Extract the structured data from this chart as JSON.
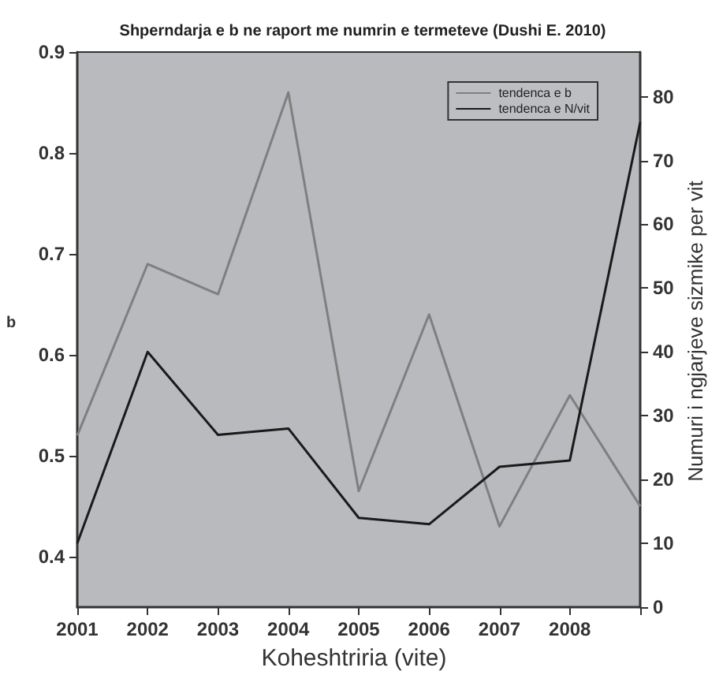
{
  "chart_data": {
    "type": "line",
    "title": "Shperndarja e b ne raport me numrin e termeteve (Dushi E. 2010)",
    "xlabel": "Koheshtriria (vite)",
    "ylabel": "b",
    "y2label": "Numuri i ngjarjeve sizmike per vit",
    "x": [
      2001,
      2002,
      2003,
      2004,
      2005,
      2006,
      2007,
      2008,
      2009
    ],
    "xlim": [
      2001,
      2009
    ],
    "xticks": [
      2001,
      2002,
      2003,
      2004,
      2005,
      2006,
      2007,
      2008,
      {
        "value": 2009,
        "label": null
      }
    ],
    "ylim": [
      0.35,
      0.9
    ],
    "yticks": [
      0.4,
      0.5,
      0.6,
      0.7,
      0.8,
      0.9
    ],
    "y2lim": [
      0,
      87
    ],
    "y2ticks": [
      0,
      10,
      20,
      30,
      40,
      50,
      60,
      70,
      80
    ],
    "series": [
      {
        "name": "tendenca e b",
        "color": "#7f7f7f",
        "values": [
          0.52,
          0.69,
          0.66,
          0.86,
          0.465,
          0.64,
          0.43,
          0.56,
          0.45
        ]
      },
      {
        "name": "tendenca e N/vit",
        "color": "#1a1a1a",
        "axis": "y2",
        "values": [
          10,
          40,
          27,
          28,
          14,
          13,
          22,
          23,
          76
        ]
      }
    ],
    "legend": "top right",
    "grid": false,
    "marker": "none",
    "line_style": "solid"
  }
}
